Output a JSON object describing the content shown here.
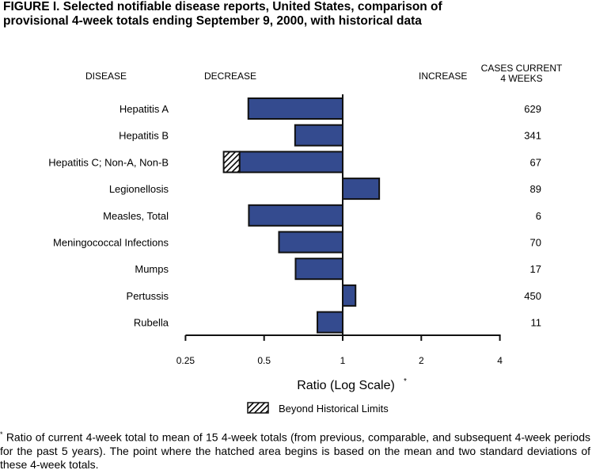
{
  "chart_data": {
    "type": "bar",
    "orientation": "horizontal",
    "scale": "log2",
    "title": "FIGURE I.  Selected notifiable disease reports, United States, comparison of\nprovisional 4-week totals ending September 9, 2000, with historical data",
    "headers": {
      "disease": "DISEASE",
      "decrease": "DECREASE",
      "increase": "INCREASE",
      "cases": "CASES CURRENT\n4 WEEKS"
    },
    "categories": [
      "Hepatitis A",
      "Hepatitis B",
      "Hepatitis C; Non-A, Non-B",
      "Legionellosis",
      "Measles, Total",
      "Meningococcal Infections",
      "Mumps",
      "Pertussis",
      "Rubella"
    ],
    "values": [
      0.435,
      0.657,
      0.35,
      1.38,
      0.437,
      0.57,
      0.66,
      1.12,
      0.8
    ],
    "beyond_limits_start": [
      null,
      null,
      0.403,
      null,
      null,
      null,
      null,
      null,
      null
    ],
    "cases": [
      "629",
      "341",
      "67",
      "89",
      "6",
      "70",
      "17",
      "450",
      "11"
    ],
    "xticks": [
      "0.25",
      "0.5",
      "1",
      "2",
      "4"
    ],
    "xtick_values": [
      0.25,
      0.5,
      1,
      2,
      4
    ],
    "xlim": [
      0.25,
      4
    ],
    "xlabel": "Ratio (Log Scale)",
    "xlabel_mark": "*",
    "legend": "Beyond Historical Limits",
    "bar_color": "#344b8f"
  },
  "footnote": {
    "mark": "*",
    "text": "Ratio of current 4-week total to mean of 15 4-week totals (from previous, comparable, and subsequent 4-week periods for the past 5 years). The point where the hatched area begins is based on the mean and two standard deviations of these 4-week totals."
  }
}
